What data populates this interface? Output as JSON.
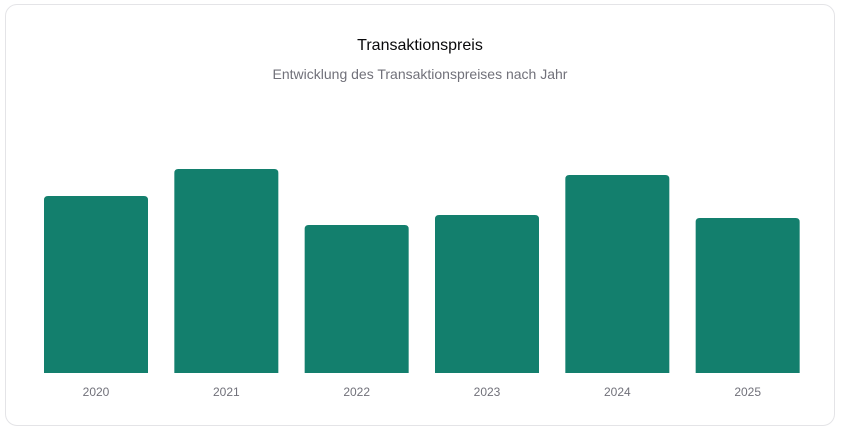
{
  "card": {
    "title": "Transaktionspreis",
    "subtitle": "Entwicklung des Transaktionspreises nach Jahr"
  },
  "colors": {
    "bar": "#137f6d",
    "tick_text": "#71717a"
  },
  "chart_data": {
    "type": "bar",
    "categories": [
      "2020",
      "2021",
      "2022",
      "2023",
      "2024",
      "2025"
    ],
    "series": [
      {
        "values": [
          177,
          204,
          148,
          158,
          198,
          155
        ]
      }
    ],
    "ylim": [
      0,
      210
    ],
    "grid": false,
    "legend": "none"
  }
}
